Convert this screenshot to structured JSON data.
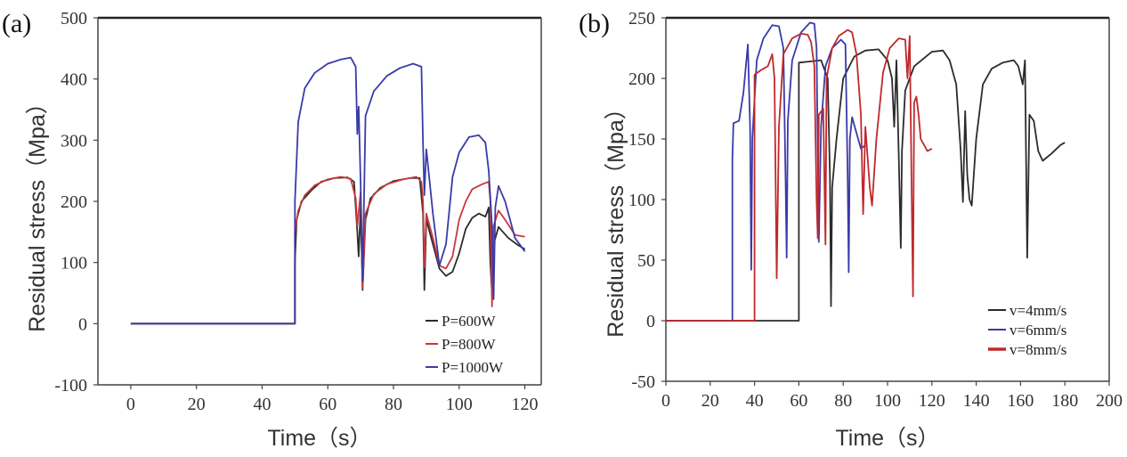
{
  "chart_data": [
    {
      "panel": "(a)",
      "type": "line",
      "xlabel": "Time（s）",
      "ylabel": "Residual stress（Mpa）",
      "xlim": [
        -10,
        125
      ],
      "ylim": [
        -100,
        500
      ],
      "xticks": [
        0,
        20,
        40,
        60,
        80,
        100,
        120
      ],
      "yticks": [
        -100,
        0,
        100,
        200,
        300,
        400,
        500
      ],
      "legend_position": "bottom-right",
      "grid": false,
      "series": [
        {
          "name": "P=600W",
          "color": "#2b2b2b",
          "points": [
            [
              0,
              0
            ],
            [
              50,
              0
            ],
            [
              50,
              100
            ],
            [
              50.5,
              170
            ],
            [
              52,
              200
            ],
            [
              55,
              218
            ],
            [
              58,
              232
            ],
            [
              62,
              238
            ],
            [
              66,
              239
            ],
            [
              68,
              232
            ],
            [
              69,
              150
            ],
            [
              69.4,
              110
            ],
            [
              70,
              190
            ],
            [
              70.6,
              55
            ],
            [
              71.5,
              170
            ],
            [
              73,
              205
            ],
            [
              76,
              222
            ],
            [
              80,
              233
            ],
            [
              85,
              238
            ],
            [
              88,
              238
            ],
            [
              89,
              180
            ],
            [
              89.4,
              55
            ],
            [
              90,
              170
            ],
            [
              92,
              130
            ],
            [
              94,
              90
            ],
            [
              96,
              78
            ],
            [
              98,
              85
            ],
            [
              100,
              115
            ],
            [
              102,
              155
            ],
            [
              104,
              173
            ],
            [
              106,
              180
            ],
            [
              108,
              175
            ],
            [
              109,
              190
            ],
            [
              109.5,
              100
            ],
            [
              110,
              48
            ],
            [
              110.5,
              130
            ],
            [
              112,
              158
            ],
            [
              115,
              140
            ],
            [
              118,
              128
            ],
            [
              120,
              122
            ]
          ]
        },
        {
          "name": "P=800W",
          "color": "#c8383c",
          "points": [
            [
              0,
              0
            ],
            [
              50,
              0
            ],
            [
              50,
              150
            ],
            [
              51,
              185
            ],
            [
              53,
              210
            ],
            [
              56,
              226
            ],
            [
              60,
              236
            ],
            [
              64,
              240
            ],
            [
              67,
              237
            ],
            [
              68.5,
              205
            ],
            [
              69,
              160
            ],
            [
              70,
              215
            ],
            [
              70.6,
              58
            ],
            [
              71.5,
              180
            ],
            [
              74,
              212
            ],
            [
              78,
              228
            ],
            [
              83,
              236
            ],
            [
              87,
              240
            ],
            [
              88.5,
              232
            ],
            [
              89,
              200
            ],
            [
              89.4,
              92
            ],
            [
              90,
              180
            ],
            [
              92,
              140
            ],
            [
              94,
              95
            ],
            [
              96,
              90
            ],
            [
              98,
              110
            ],
            [
              100,
              170
            ],
            [
              102,
              200
            ],
            [
              104,
              220
            ],
            [
              107,
              228
            ],
            [
              109,
              232
            ],
            [
              109.5,
              200
            ],
            [
              110,
              28
            ],
            [
              110.5,
              160
            ],
            [
              112,
              185
            ],
            [
              114,
              170
            ],
            [
              117,
              145
            ],
            [
              120,
              142
            ]
          ]
        },
        {
          "name": "P=1000W",
          "color": "#3a3aa8",
          "points": [
            [
              0,
              0
            ],
            [
              50,
              0
            ],
            [
              50,
              200
            ],
            [
              51,
              330
            ],
            [
              53,
              385
            ],
            [
              56,
              410
            ],
            [
              60,
              425
            ],
            [
              64,
              432
            ],
            [
              67,
              435
            ],
            [
              68.5,
              420
            ],
            [
              69,
              310
            ],
            [
              69.4,
              355
            ],
            [
              70,
              230
            ],
            [
              70.6,
              70
            ],
            [
              71.5,
              340
            ],
            [
              74,
              380
            ],
            [
              78,
              405
            ],
            [
              82,
              418
            ],
            [
              86,
              425
            ],
            [
              88.5,
              420
            ],
            [
              89,
              295
            ],
            [
              89.4,
              210
            ],
            [
              90,
              285
            ],
            [
              92,
              180
            ],
            [
              94,
              95
            ],
            [
              96,
              130
            ],
            [
              98,
              240
            ],
            [
              100,
              280
            ],
            [
              103,
              305
            ],
            [
              106,
              308
            ],
            [
              108,
              296
            ],
            [
              109,
              250
            ],
            [
              110,
              160
            ],
            [
              110.5,
              40
            ],
            [
              111,
              190
            ],
            [
              112,
              225
            ],
            [
              114,
              200
            ],
            [
              117,
              140
            ],
            [
              120,
              118
            ]
          ]
        }
      ]
    },
    {
      "panel": "(b)",
      "type": "line",
      "xlabel": "Time（s）",
      "ylabel": "Residual stress（Mpa）",
      "xlim": [
        0,
        200
      ],
      "ylim": [
        -50,
        250
      ],
      "xticks": [
        0,
        20,
        40,
        60,
        80,
        100,
        120,
        140,
        160,
        180,
        200
      ],
      "yticks": [
        -50,
        0,
        50,
        100,
        150,
        200,
        250
      ],
      "legend_position": "bottom-right",
      "grid": false,
      "series": [
        {
          "name": "v=4mm/s",
          "color": "#2b2b2b",
          "points": [
            [
              0,
              0
            ],
            [
              60,
              0
            ],
            [
              60,
              213
            ],
            [
              65,
              214
            ],
            [
              70,
              215
            ],
            [
              73,
              200
            ],
            [
              74,
              120
            ],
            [
              74.5,
              12
            ],
            [
              75,
              110
            ],
            [
              77,
              150
            ],
            [
              80,
              200
            ],
            [
              85,
              218
            ],
            [
              90,
              223
            ],
            [
              96,
              224
            ],
            [
              100,
              215
            ],
            [
              102,
              200
            ],
            [
              103,
              160
            ],
            [
              104,
              215
            ],
            [
              105,
              140
            ],
            [
              106,
              60
            ],
            [
              106.5,
              140
            ],
            [
              108,
              190
            ],
            [
              112,
              210
            ],
            [
              120,
              222
            ],
            [
              125,
              223
            ],
            [
              128,
              215
            ],
            [
              131,
              195
            ],
            [
              133,
              140
            ],
            [
              134,
              98
            ],
            [
              135,
              173
            ],
            [
              136,
              120
            ],
            [
              137,
              100
            ],
            [
              138,
              95
            ],
            [
              140,
              150
            ],
            [
              143,
              195
            ],
            [
              147,
              208
            ],
            [
              152,
              213
            ],
            [
              157,
              215
            ],
            [
              159,
              210
            ],
            [
              161,
              195
            ],
            [
              162,
              215
            ],
            [
              163,
              52
            ],
            [
              164,
              170
            ],
            [
              166,
              165
            ],
            [
              168,
              140
            ],
            [
              170,
              132
            ],
            [
              174,
              138
            ],
            [
              178,
              145
            ],
            [
              180,
              147
            ]
          ]
        },
        {
          "name": "v=6mm/s",
          "color": "#3a3aa8",
          "points": [
            [
              0,
              0
            ],
            [
              30,
              0
            ],
            [
              30,
              133
            ],
            [
              30.5,
              163
            ],
            [
              33,
              165
            ],
            [
              35,
              188
            ],
            [
              37,
              228
            ],
            [
              38,
              160
            ],
            [
              38.5,
              42
            ],
            [
              39,
              150
            ],
            [
              41,
              215
            ],
            [
              44,
              233
            ],
            [
              48,
              244
            ],
            [
              51,
              243
            ],
            [
              53,
              225
            ],
            [
              54,
              115
            ],
            [
              54.5,
              52
            ],
            [
              55,
              165
            ],
            [
              57,
              215
            ],
            [
              61,
              238
            ],
            [
              65,
              246
            ],
            [
              67,
              245
            ],
            [
              68,
              225
            ],
            [
              69,
              65
            ],
            [
              70,
              160
            ],
            [
              72,
              210
            ],
            [
              75,
              225
            ],
            [
              79,
              232
            ],
            [
              81,
              228
            ],
            [
              82,
              120
            ],
            [
              82.5,
              40
            ],
            [
              83,
              150
            ],
            [
              84,
              168
            ],
            [
              86,
              155
            ],
            [
              88,
              142
            ],
            [
              90,
              145
            ]
          ]
        },
        {
          "name": "v=8mm/s",
          "color": "#c0282c",
          "points": [
            [
              0,
              0
            ],
            [
              40,
              0
            ],
            [
              40,
              203
            ],
            [
              43,
              207
            ],
            [
              46,
              210
            ],
            [
              48,
              220
            ],
            [
              49,
              200
            ],
            [
              50,
              35
            ],
            [
              51,
              160
            ],
            [
              53,
              220
            ],
            [
              57,
              233
            ],
            [
              61,
              237
            ],
            [
              64,
              236
            ],
            [
              65.5,
              230
            ],
            [
              67,
              210
            ],
            [
              68,
              100
            ],
            [
              68.5,
              68
            ],
            [
              69,
              170
            ],
            [
              71,
              175
            ],
            [
              72,
              63
            ],
            [
              72.5,
              200
            ],
            [
              75,
              225
            ],
            [
              78,
              235
            ],
            [
              82,
              240
            ],
            [
              84,
              238
            ],
            [
              86,
              220
            ],
            [
              88,
              170
            ],
            [
              89,
              88
            ],
            [
              90,
              160
            ],
            [
              92,
              110
            ],
            [
              93,
              95
            ],
            [
              95,
              150
            ],
            [
              98,
              205
            ],
            [
              101,
              225
            ],
            [
              105,
              233
            ],
            [
              108,
              232
            ],
            [
              109,
              200
            ],
            [
              110,
              235
            ],
            [
              111,
              90
            ],
            [
              111.5,
              20
            ],
            [
              112,
              180
            ],
            [
              113,
              185
            ],
            [
              114,
              170
            ],
            [
              115,
              150
            ],
            [
              118,
              140
            ],
            [
              120,
              142
            ]
          ]
        }
      ]
    }
  ]
}
